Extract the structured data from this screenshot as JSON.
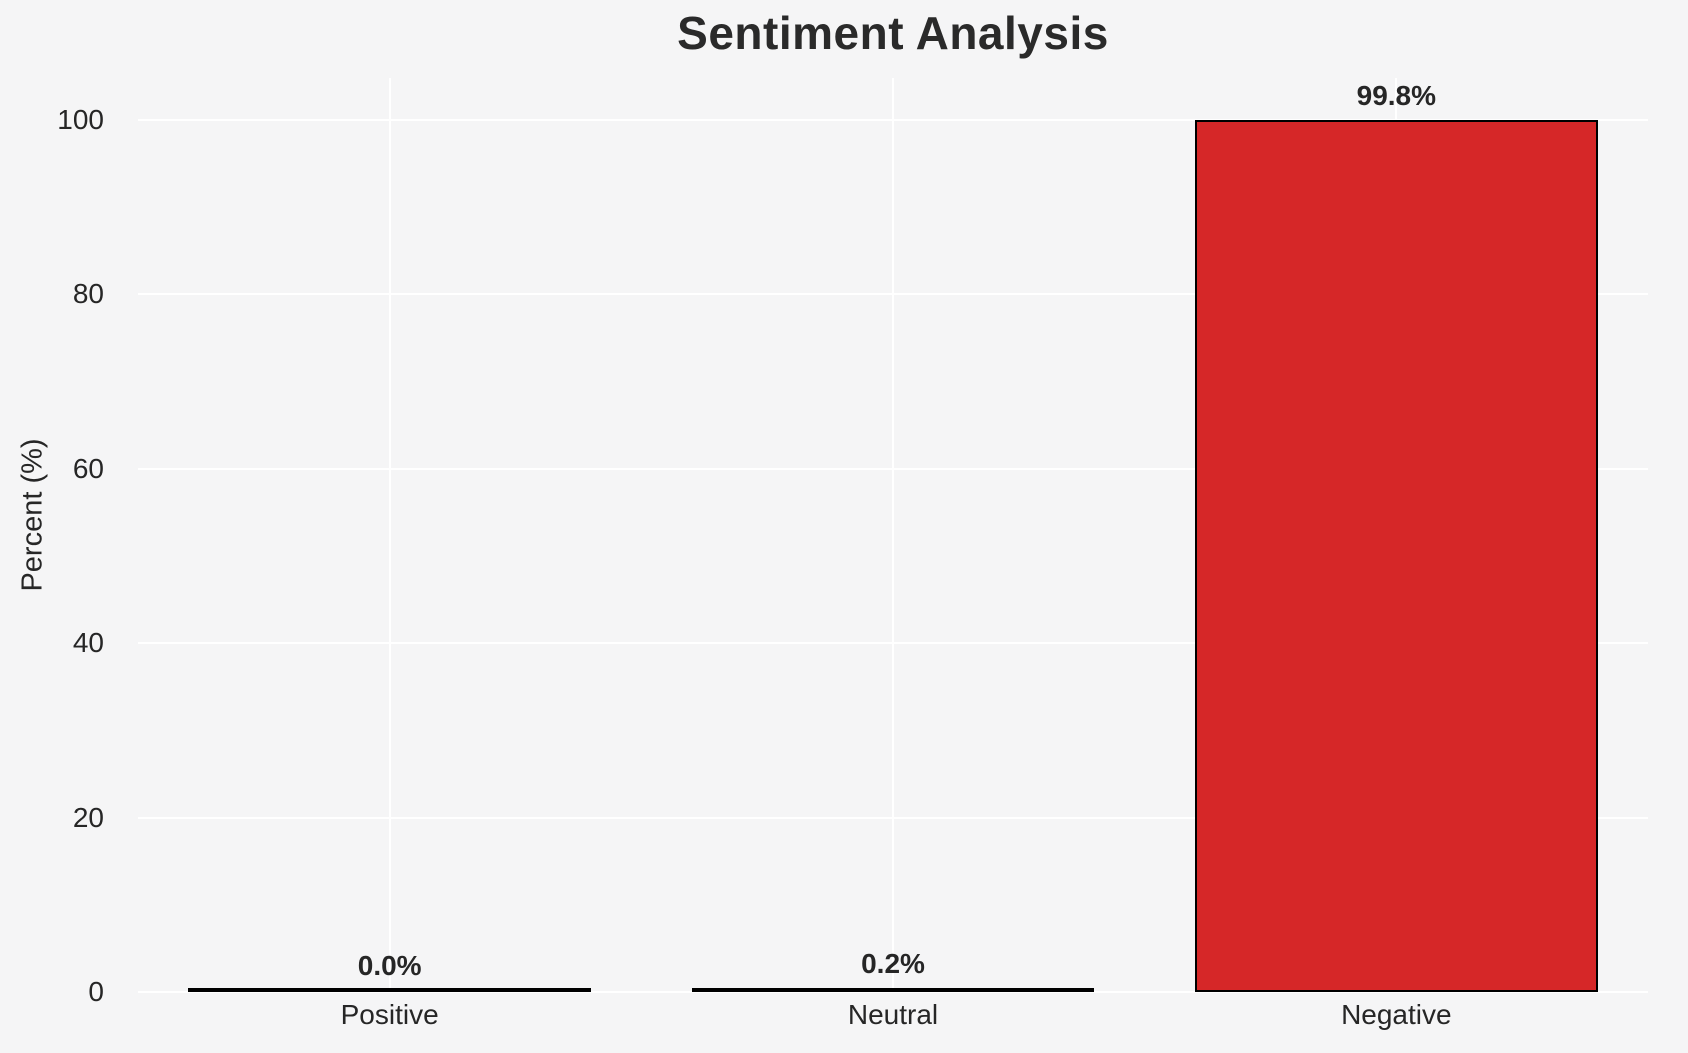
{
  "chart_data": {
    "type": "bar",
    "title": "Sentiment Analysis",
    "xlabel": "",
    "ylabel": "Percent (%)",
    "categories": [
      "Positive",
      "Neutral",
      "Negative"
    ],
    "values": [
      0.0,
      0.2,
      99.8
    ],
    "value_labels": [
      "0.0%",
      "0.2%",
      "99.8%"
    ],
    "yticks": [
      0,
      20,
      40,
      60,
      80,
      100
    ],
    "ytick_labels": [
      "0",
      "20",
      "40",
      "60",
      "80",
      "100"
    ],
    "ylim": [
      0,
      104.8
    ],
    "grid": true,
    "legend": "none",
    "bar_width_fraction": 0.8,
    "bar_fills": [
      "none",
      "none",
      "#d62728"
    ],
    "bar_edge_color": "#000000",
    "colors": {
      "background": "#f5f5f6",
      "gridline": "#ffffff",
      "text": "#262626",
      "title_text": "#2a2a2a",
      "negative_bar": "#d62728"
    }
  }
}
